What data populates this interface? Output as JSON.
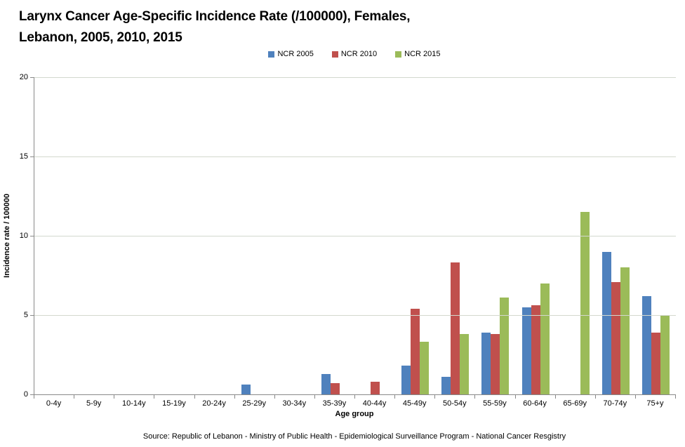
{
  "title": {
    "line1": "Larynx Cancer Age-Specific Incidence Rate (/100000), Females,",
    "line2": "Lebanon, 2005, 2010, 2015"
  },
  "footer": "Source: Republic of Lebanon - Ministry of Public Health - Epidemiological Surveillance Program - National Cancer Resgistry",
  "colors": {
    "axis": "#898989",
    "gridline": "#d3d8ce",
    "ncr2005": "#4F81BD",
    "ncr2010": "#C0504D",
    "ncr2015": "#9BBB59"
  },
  "chart_data": {
    "type": "bar",
    "title": "Larynx Cancer Age-Specific Incidence Rate (/100000), Females, Lebanon, 2005, 2010, 2015",
    "xlabel": "Age group",
    "ylabel": "Incidence rate / 100000",
    "ylim": [
      0,
      20
    ],
    "yticks": [
      0,
      5,
      10,
      15,
      20
    ],
    "grid": true,
    "legend_position": "top",
    "categories": [
      "0-4y",
      "5-9y",
      "10-14y",
      "15-19y",
      "20-24y",
      "25-29y",
      "30-34y",
      "35-39y",
      "40-44y",
      "45-49y",
      "50-54y",
      "55-59y",
      "60-64y",
      "65-69y",
      "70-74y",
      "75+y"
    ],
    "series": [
      {
        "name": "NCR 2005",
        "color": "#4F81BD",
        "values": [
          0,
          0,
          0,
          0,
          0,
          0.6,
          0,
          1.3,
          0,
          1.8,
          1.1,
          3.9,
          5.5,
          0,
          9.0,
          6.2
        ]
      },
      {
        "name": "NCR 2010",
        "color": "#C0504D",
        "values": [
          0,
          0,
          0,
          0,
          0,
          0,
          0,
          0.7,
          0.8,
          5.4,
          8.3,
          3.8,
          5.6,
          0,
          7.1,
          3.9
        ]
      },
      {
        "name": "NCR 2015",
        "color": "#9BBB59",
        "values": [
          0,
          0,
          0,
          0,
          0,
          0,
          0,
          0,
          0,
          3.3,
          3.8,
          6.1,
          7.0,
          11.5,
          8.0,
          5.0
        ]
      }
    ]
  }
}
